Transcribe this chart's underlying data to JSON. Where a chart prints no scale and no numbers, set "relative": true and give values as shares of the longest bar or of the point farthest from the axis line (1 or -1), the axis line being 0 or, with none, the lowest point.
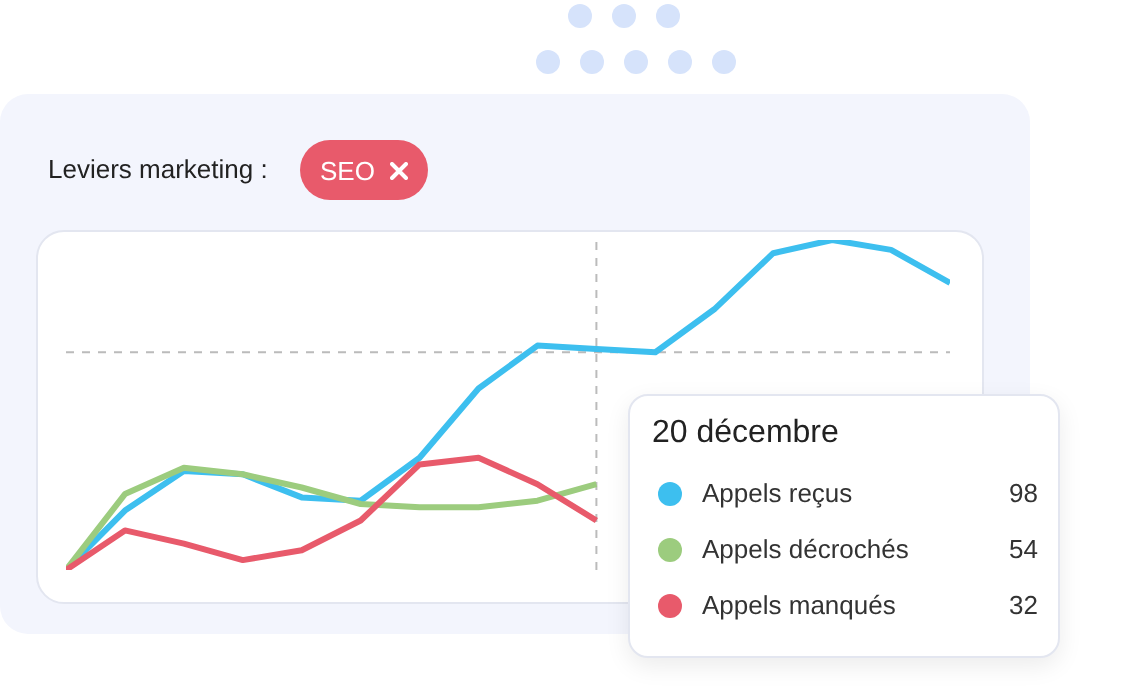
{
  "chart_data": {
    "type": "line",
    "relative": true,
    "categories": [
      null,
      null,
      null,
      null,
      null,
      null,
      null,
      null,
      null,
      null,
      null,
      null,
      null,
      null,
      null,
      null
    ],
    "legend": "bottom right",
    "marker": "none",
    "line_style": "solid",
    "series": [
      {
        "name": "Appels reçus",
        "color": "#3dbfef",
        "values": [
          0,
          0.18,
          0.3,
          0.29,
          0.22,
          0.21,
          0.34,
          0.55,
          0.68,
          0.67,
          0.66,
          0.79,
          0.96,
          1,
          0.97,
          0.87
        ]
      },
      {
        "name": "Appels décrochés",
        "color": "#9ccc7e",
        "values": [
          0,
          0.23,
          0.31,
          0.29,
          0.25,
          0.2,
          0.19,
          0.19,
          0.21,
          0.26,
          null,
          null,
          null,
          null,
          null,
          null
        ]
      },
      {
        "name": "Appels manqués",
        "color": "#e85a6b",
        "values": [
          0,
          0.12,
          0.08,
          0.03,
          0.06,
          0.15,
          0.32,
          0.34,
          0.26,
          0.15,
          null,
          null,
          null,
          null,
          null,
          null
        ]
      }
    ],
    "ref_lines": [
      {
        "axis": "y",
        "value": 0.66,
        "color": "#bbbbbb",
        "line_style": "dashed"
      }
    ],
    "annotations": [
      "Leviers marketing :",
      "SEO",
      "20 décembre",
      "98",
      "54",
      "32"
    ]
  }
}
